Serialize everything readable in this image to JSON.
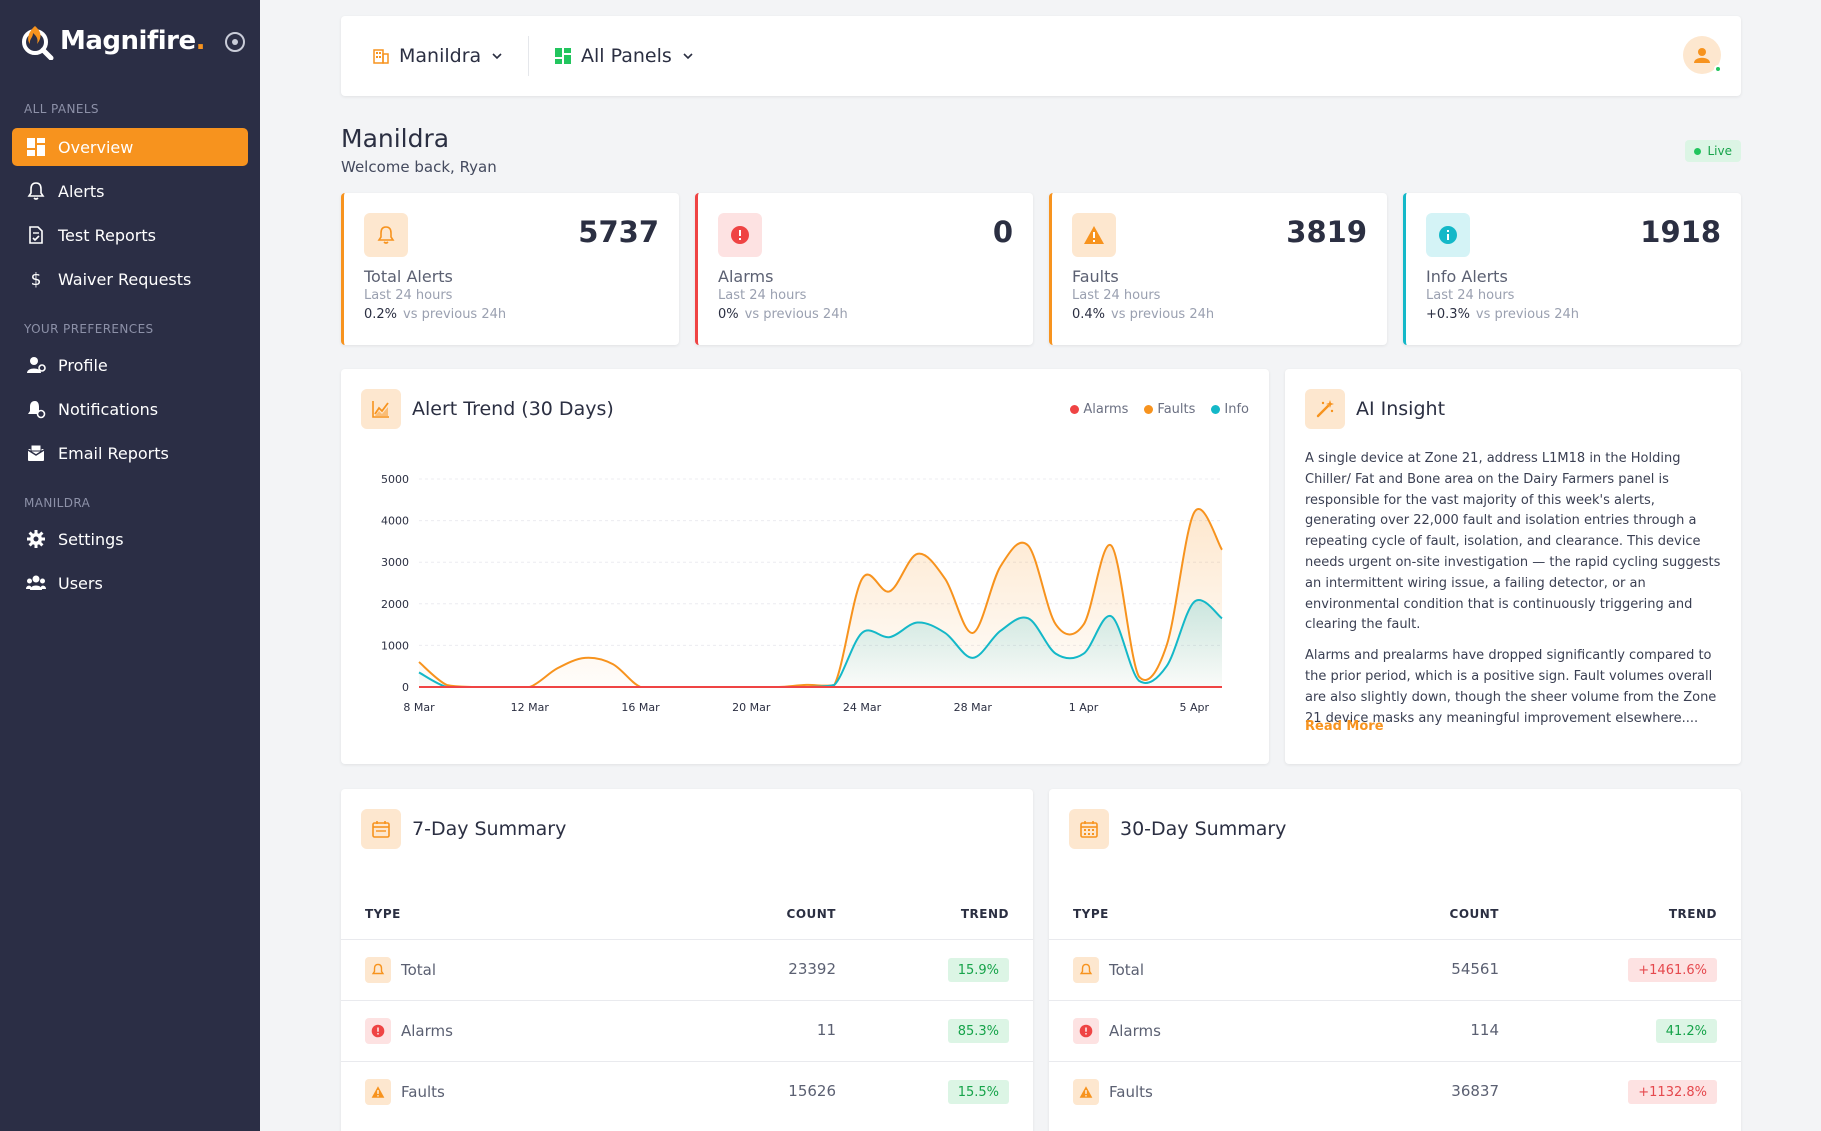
{
  "brand": {
    "name": "Magnifire",
    "suffix": "."
  },
  "sidebar": {
    "sections": [
      {
        "title": "ALL PANELS"
      },
      {
        "title": "YOUR PREFERENCES"
      },
      {
        "title": "MANILDRA"
      }
    ],
    "items": [
      {
        "label": "Overview",
        "icon": "grid-icon",
        "active": true
      },
      {
        "label": "Alerts",
        "icon": "bell-icon"
      },
      {
        "label": "Test Reports",
        "icon": "document-check-icon"
      },
      {
        "label": "Waiver Requests",
        "icon": "dollar-icon"
      },
      {
        "label": "Profile",
        "icon": "user-cog-icon"
      },
      {
        "label": "Notifications",
        "icon": "bell-cog-icon"
      },
      {
        "label": "Email Reports",
        "icon": "envelope-icon"
      },
      {
        "label": "Settings",
        "icon": "gear-icon"
      },
      {
        "label": "Users",
        "icon": "users-icon"
      }
    ]
  },
  "topbar": {
    "site": "Manildra",
    "panels": "All Panels"
  },
  "header": {
    "title": "Manildra",
    "subtitle": "Welcome back, Ryan",
    "live": "Live"
  },
  "stats": [
    {
      "value": "5737",
      "label": "Total Alerts",
      "period": "Last 24 hours",
      "change": "0.2%",
      "compare": "vs previous 24h",
      "color": "#f7931e",
      "icon": "bell-icon"
    },
    {
      "value": "0",
      "label": "Alarms",
      "period": "Last 24 hours",
      "change": "0%",
      "compare": "vs previous 24h",
      "color": "#ef4444",
      "icon": "alert-circle-icon"
    },
    {
      "value": "3819",
      "label": "Faults",
      "period": "Last 24 hours",
      "change": "0.4%",
      "compare": "vs previous 24h",
      "color": "#f7931e",
      "icon": "warning-triangle-icon"
    },
    {
      "value": "1918",
      "label": "Info Alerts",
      "period": "Last 24 hours",
      "change": "+0.3%",
      "compare": "vs previous 24h",
      "color": "#14b8c8",
      "icon": "info-icon"
    }
  ],
  "trend_panel": {
    "title": "Alert Trend (30 Days)",
    "legend": [
      "Alarms",
      "Faults",
      "Info"
    ]
  },
  "chart_data": {
    "type": "area",
    "title": "Alert Trend (30 Days)",
    "x_ticks": [
      "8 Mar",
      "12 Mar",
      "16 Mar",
      "20 Mar",
      "24 Mar",
      "28 Mar",
      "1 Apr",
      "5 Apr"
    ],
    "ylim": [
      0,
      5000
    ],
    "y_ticks": [
      0,
      1000,
      2000,
      3000,
      4000,
      5000
    ],
    "grid": true,
    "legend_position": "top-right",
    "x": [
      "8 Mar",
      "9 Mar",
      "10 Mar",
      "11 Mar",
      "12 Mar",
      "13 Mar",
      "14 Mar",
      "15 Mar",
      "16 Mar",
      "17 Mar",
      "18 Mar",
      "19 Mar",
      "20 Mar",
      "21 Mar",
      "22 Mar",
      "23 Mar",
      "24 Mar",
      "25 Mar",
      "26 Mar",
      "27 Mar",
      "28 Mar",
      "29 Mar",
      "30 Mar",
      "31 Mar",
      "1 Apr",
      "2 Apr",
      "3 Apr",
      "4 Apr",
      "5 Apr",
      "6 Apr"
    ],
    "series": [
      {
        "name": "Alarms",
        "color": "#ef4444",
        "values": [
          0,
          0,
          0,
          0,
          0,
          0,
          0,
          0,
          0,
          0,
          0,
          0,
          0,
          0,
          0,
          0,
          0,
          0,
          0,
          0,
          0,
          0,
          0,
          0,
          0,
          0,
          0,
          0,
          0,
          0
        ]
      },
      {
        "name": "Faults",
        "color": "#f7931e",
        "values": [
          600,
          50,
          0,
          0,
          0,
          450,
          700,
          550,
          0,
          0,
          0,
          0,
          0,
          0,
          50,
          50,
          2600,
          2300,
          3200,
          2600,
          1300,
          2900,
          3400,
          1500,
          1500,
          3400,
          250,
          1000,
          4200,
          3300
        ]
      },
      {
        "name": "Info",
        "color": "#14b8c8",
        "values": [
          350,
          0,
          0,
          0,
          0,
          0,
          0,
          0,
          0,
          0,
          0,
          0,
          0,
          0,
          0,
          50,
          1300,
          1200,
          1550,
          1300,
          700,
          1350,
          1650,
          800,
          800,
          1700,
          150,
          500,
          2050,
          1650
        ]
      }
    ]
  },
  "ai_panel": {
    "title": "AI Insight",
    "paragraphs": [
      "A single device at Zone 21, address L1M18 in the Holding Chiller/ Fat and Bone area on the Dairy Farmers panel is responsible for the vast majority of this week's alerts, generating over 22,000 fault and isolation entries through a repeating cycle of fault, isolation, and clearance. This device needs urgent on-site investigation — the rapid cycling suggests an intermittent wiring issue, a failing detector, or an environmental condition that is continuously triggering and clearing the fault.",
      "Alarms and prealarms have dropped significantly compared to the prior period, which is a positive sign. Fault volumes overall are also slightly down, though the sheer volume from the Zone 21 device masks any meaningful improvement elsewhere...."
    ],
    "read_more": "Read More"
  },
  "summary7": {
    "title": "7-Day Summary",
    "headers": {
      "type": "TYPE",
      "count": "COUNT",
      "trend": "TREND"
    },
    "rows": [
      {
        "type": "Total",
        "count": "23392",
        "trend": "15.9%",
        "dir": "up"
      },
      {
        "type": "Alarms",
        "count": "11",
        "trend": "85.3%",
        "dir": "up"
      },
      {
        "type": "Faults",
        "count": "15626",
        "trend": "15.5%",
        "dir": "up"
      }
    ]
  },
  "summary30": {
    "title": "30-Day Summary",
    "headers": {
      "type": "TYPE",
      "count": "COUNT",
      "trend": "TREND"
    },
    "rows": [
      {
        "type": "Total",
        "count": "54561",
        "trend": "+1461.6%",
        "dir": "down"
      },
      {
        "type": "Alarms",
        "count": "114",
        "trend": "41.2%",
        "dir": "up"
      },
      {
        "type": "Faults",
        "count": "36837",
        "trend": "+1132.8%",
        "dir": "down"
      }
    ]
  }
}
